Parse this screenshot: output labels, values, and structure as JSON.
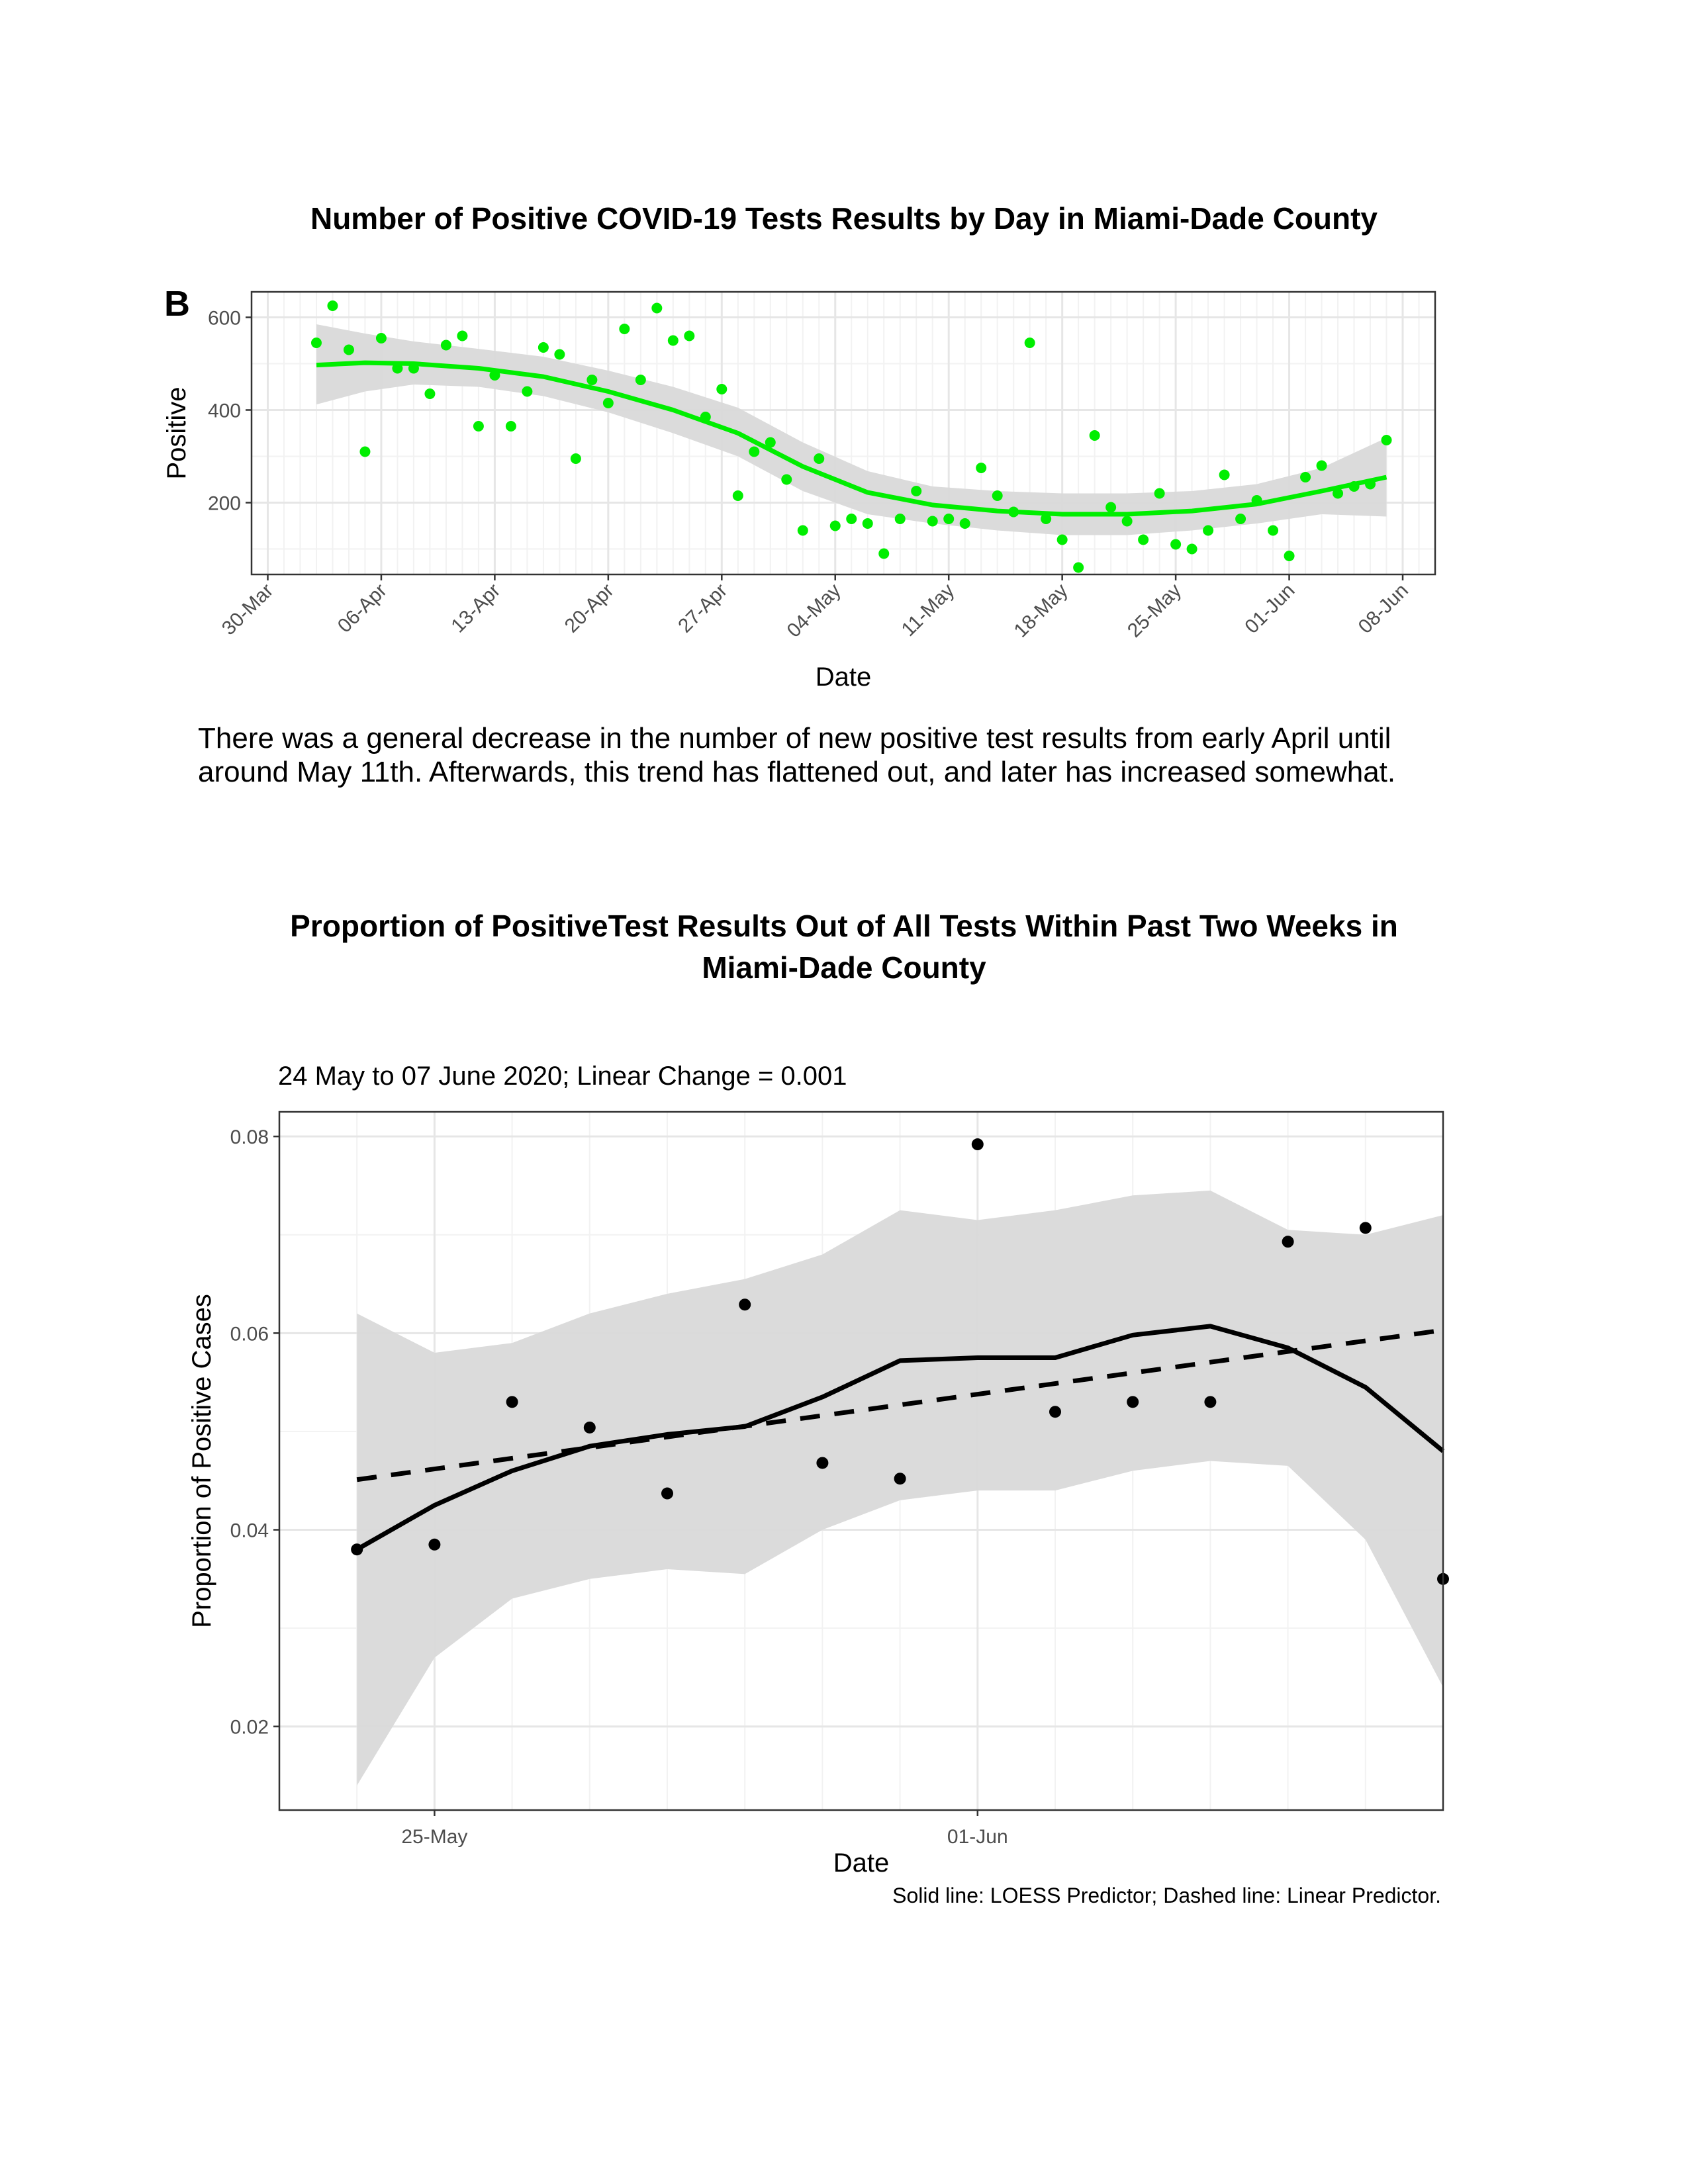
{
  "chart1_title": "Number of Positive COVID-19 Tests Results by Day in Miami-Dade County",
  "panel_label": "B",
  "paragraph": {
    "line1": "There was a general decrease in the number of new positive test results from early April until",
    "line2": "around May 11th. Afterwards, this trend has flattened out, and later has increased somewhat."
  },
  "chart2_title": {
    "line1": "Proportion of PositiveTest Results Out of All Tests Within Past Two Weeks in",
    "line2": "Miami-Dade County"
  },
  "chart2_subtitle": "24 May to 07 June 2020; Linear Change = 0.001",
  "caption": "Solid line: LOESS Predictor; Dashed line: Linear Predictor.",
  "colors": {
    "points_chart1": "#00ee00",
    "smooth_chart1": "#00ee00",
    "ribbon": "#d9d9d9",
    "points_chart2": "#000000"
  },
  "chart_data": [
    {
      "type": "scatter",
      "xlabel": "Date",
      "ylabel": "Positive",
      "x_ticks": [
        "30-Mar",
        "06-Apr",
        "13-Apr",
        "20-Apr",
        "27-Apr",
        "04-May",
        "11-May",
        "18-May",
        "25-May",
        "01-Jun",
        "08-Jun"
      ],
      "x_tick_dates": [
        "2020-03-30",
        "2020-04-06",
        "2020-04-13",
        "2020-04-20",
        "2020-04-27",
        "2020-05-04",
        "2020-05-11",
        "2020-05-18",
        "2020-05-25",
        "2020-06-01",
        "2020-06-08"
      ],
      "y_ticks": [
        200,
        400,
        600
      ],
      "xlim": [
        "2020-03-29",
        "2020-06-10"
      ],
      "ylim": [
        45,
        655
      ],
      "grid": true,
      "points": {
        "x": [
          "2020-04-02",
          "2020-04-03",
          "2020-04-04",
          "2020-04-05",
          "2020-04-06",
          "2020-04-07",
          "2020-04-08",
          "2020-04-09",
          "2020-04-10",
          "2020-04-11",
          "2020-04-12",
          "2020-04-13",
          "2020-04-14",
          "2020-04-15",
          "2020-04-16",
          "2020-04-17",
          "2020-04-18",
          "2020-04-19",
          "2020-04-20",
          "2020-04-21",
          "2020-04-22",
          "2020-04-23",
          "2020-04-24",
          "2020-04-25",
          "2020-04-26",
          "2020-04-27",
          "2020-04-28",
          "2020-04-29",
          "2020-04-30",
          "2020-05-01",
          "2020-05-02",
          "2020-05-03",
          "2020-05-04",
          "2020-05-05",
          "2020-05-06",
          "2020-05-07",
          "2020-05-08",
          "2020-05-09",
          "2020-05-10",
          "2020-05-11",
          "2020-05-12",
          "2020-05-13",
          "2020-05-14",
          "2020-05-15",
          "2020-05-16",
          "2020-05-17",
          "2020-05-18",
          "2020-05-19",
          "2020-05-20",
          "2020-05-21",
          "2020-05-22",
          "2020-05-23",
          "2020-05-24",
          "2020-05-25",
          "2020-05-26",
          "2020-05-27",
          "2020-05-28",
          "2020-05-29",
          "2020-05-30",
          "2020-05-31",
          "2020-06-01",
          "2020-06-02",
          "2020-06-03",
          "2020-06-04",
          "2020-06-05",
          "2020-06-06",
          "2020-06-07"
        ],
        "y": [
          545,
          625,
          530,
          310,
          555,
          490,
          490,
          435,
          540,
          560,
          365,
          475,
          365,
          440,
          535,
          520,
          295,
          465,
          415,
          575,
          465,
          620,
          550,
          560,
          385,
          445,
          215,
          310,
          330,
          250,
          140,
          295,
          150,
          165,
          155,
          90,
          165,
          225,
          160,
          165,
          155,
          275,
          215,
          180,
          545,
          165,
          120,
          60,
          345,
          190,
          160,
          120,
          220,
          110,
          100,
          140,
          260,
          165,
          205,
          140,
          85,
          255,
          280,
          220,
          235,
          240,
          335
        ]
      },
      "smooth": {
        "x": [
          "2020-04-02",
          "2020-04-05",
          "2020-04-08",
          "2020-04-12",
          "2020-04-16",
          "2020-04-20",
          "2020-04-24",
          "2020-04-28",
          "2020-05-02",
          "2020-05-06",
          "2020-05-10",
          "2020-05-14",
          "2020-05-18",
          "2020-05-22",
          "2020-05-26",
          "2020-05-30",
          "2020-06-03",
          "2020-06-07"
        ],
        "y": [
          497,
          502,
          500,
          490,
          472,
          440,
          400,
          350,
          278,
          222,
          195,
          182,
          175,
          175,
          182,
          197,
          225,
          255
        ],
        "ci_low": [
          412,
          440,
          455,
          450,
          430,
          395,
          350,
          300,
          225,
          175,
          155,
          140,
          130,
          130,
          140,
          155,
          175,
          170
        ],
        "ci_high": [
          585,
          565,
          548,
          532,
          515,
          485,
          450,
          405,
          330,
          268,
          235,
          225,
          220,
          220,
          225,
          240,
          275,
          340
        ]
      }
    },
    {
      "type": "scatter",
      "xlabel": "Date",
      "ylabel": "Proportion of Positive Cases",
      "x_ticks": [
        "25-May",
        "01-Jun"
      ],
      "x_tick_dates": [
        "2020-05-25",
        "2020-06-01"
      ],
      "y_ticks": [
        0.02,
        0.04,
        0.06,
        0.08
      ],
      "xlim": [
        "2020-05-23",
        "2020-06-07"
      ],
      "ylim": [
        0.0115,
        0.0825
      ],
      "grid": true,
      "points": {
        "x": [
          "2020-05-24",
          "2020-05-25",
          "2020-05-26",
          "2020-05-27",
          "2020-05-28",
          "2020-05-29",
          "2020-05-30",
          "2020-05-31",
          "2020-06-01",
          "2020-06-02",
          "2020-06-03",
          "2020-06-04",
          "2020-06-05",
          "2020-06-06",
          "2020-06-07"
        ],
        "y": [
          0.038,
          0.0385,
          0.053,
          0.0504,
          0.0437,
          0.0629,
          0.0468,
          0.0452,
          0.0792,
          0.052,
          0.053,
          0.053,
          0.0693,
          0.0707,
          0.035
        ]
      },
      "loess": {
        "x": [
          "2020-05-24",
          "2020-05-25",
          "2020-05-26",
          "2020-05-27",
          "2020-05-28",
          "2020-05-29",
          "2020-05-30",
          "2020-05-31",
          "2020-06-01",
          "2020-06-02",
          "2020-06-03",
          "2020-06-04",
          "2020-06-05",
          "2020-06-06",
          "2020-06-07"
        ],
        "y": [
          0.038,
          0.0425,
          0.046,
          0.0485,
          0.0497,
          0.0505,
          0.0535,
          0.0572,
          0.0575,
          0.0575,
          0.0598,
          0.0607,
          0.0585,
          0.0545,
          0.048
        ],
        "ci_low": [
          0.014,
          0.027,
          0.033,
          0.035,
          0.036,
          0.0355,
          0.04,
          0.043,
          0.044,
          0.044,
          0.046,
          0.047,
          0.0465,
          0.039,
          0.024
        ],
        "ci_high": [
          0.062,
          0.058,
          0.059,
          0.062,
          0.064,
          0.0655,
          0.068,
          0.0725,
          0.0715,
          0.0725,
          0.074,
          0.0745,
          0.0705,
          0.07,
          0.072
        ]
      },
      "linear": {
        "x": [
          "2020-05-24",
          "2020-06-07"
        ],
        "y": [
          0.0451,
          0.0603
        ]
      }
    }
  ]
}
